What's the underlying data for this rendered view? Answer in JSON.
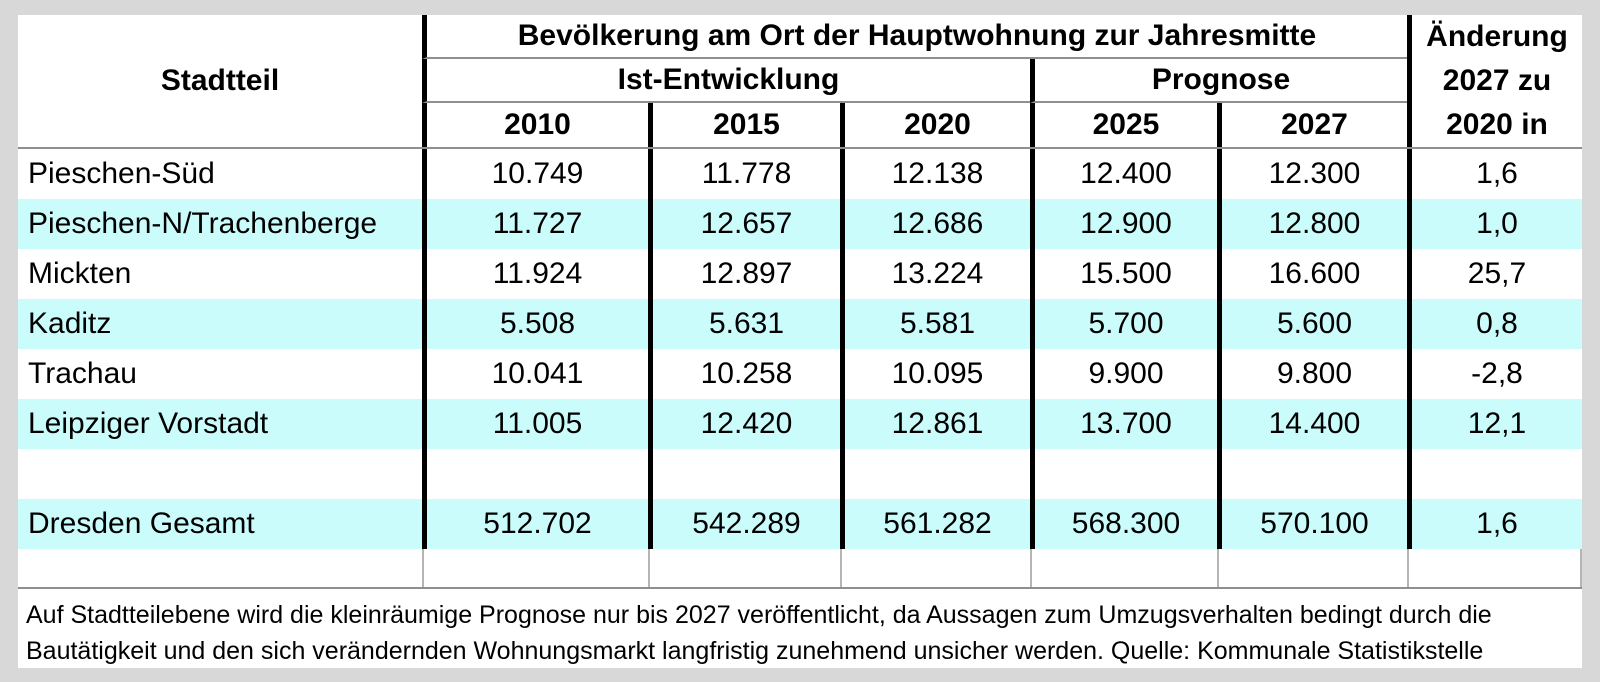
{
  "page": {
    "background": "#d8d8d8"
  },
  "table": {
    "header": {
      "stadtteil": "Stadtteil",
      "title": "Bevölkerung am Ort der Hauptwohnung zur Jahresmitte",
      "group_ist": "Ist-Entwicklung",
      "group_prognose": "Prognose",
      "years": [
        "2010",
        "2015",
        "2020",
        "2025",
        "2027"
      ],
      "change_lines": [
        "Änderung",
        "2027 zu",
        "2020 in"
      ]
    },
    "rows": [
      {
        "name": "Pieschen-Süd",
        "values": [
          "10.749",
          "11.778",
          "12.138",
          "12.400",
          "12.300",
          "1,6"
        ]
      },
      {
        "name": "Pieschen-N/Trachenberge",
        "values": [
          "11.727",
          "12.657",
          "12.686",
          "12.900",
          "12.800",
          "1,0"
        ]
      },
      {
        "name": "Mickten",
        "values": [
          "11.924",
          "12.897",
          "13.224",
          "15.500",
          "16.600",
          "25,7"
        ]
      },
      {
        "name": "Kaditz",
        "values": [
          "5.508",
          "5.631",
          "5.581",
          "5.700",
          "5.600",
          "0,8"
        ]
      },
      {
        "name": "Trachau",
        "values": [
          "10.041",
          "10.258",
          "10.095",
          "9.900",
          "9.800",
          "-2,8"
        ]
      },
      {
        "name": "Leipziger Vorstadt",
        "values": [
          "11.005",
          "12.420",
          "12.861",
          "13.700",
          "14.400",
          "12,1"
        ]
      },
      {
        "name": "",
        "values": [
          "",
          "",
          "",
          "",
          "",
          ""
        ]
      },
      {
        "name": "Dresden Gesamt",
        "values": [
          "512.702",
          "542.289",
          "561.282",
          "568.300",
          "570.100",
          "1,6"
        ]
      }
    ],
    "colors": {
      "alt_row": "#cbfcfc",
      "thick_border": "#000000",
      "thin_border": "#8f8f8f"
    }
  },
  "footnote": {
    "line1": "Auf Stadtteilebene wird die kleinräumige Prognose nur bis 2027 veröffentlicht, da Aussagen zum Umzugsverhalten bedingt durch die",
    "line2": "Bautätigkeit und den sich verändernden Wohnungsmarkt langfristig zunehmend unsicher werden. Quelle: Kommunale Statistikstelle"
  }
}
